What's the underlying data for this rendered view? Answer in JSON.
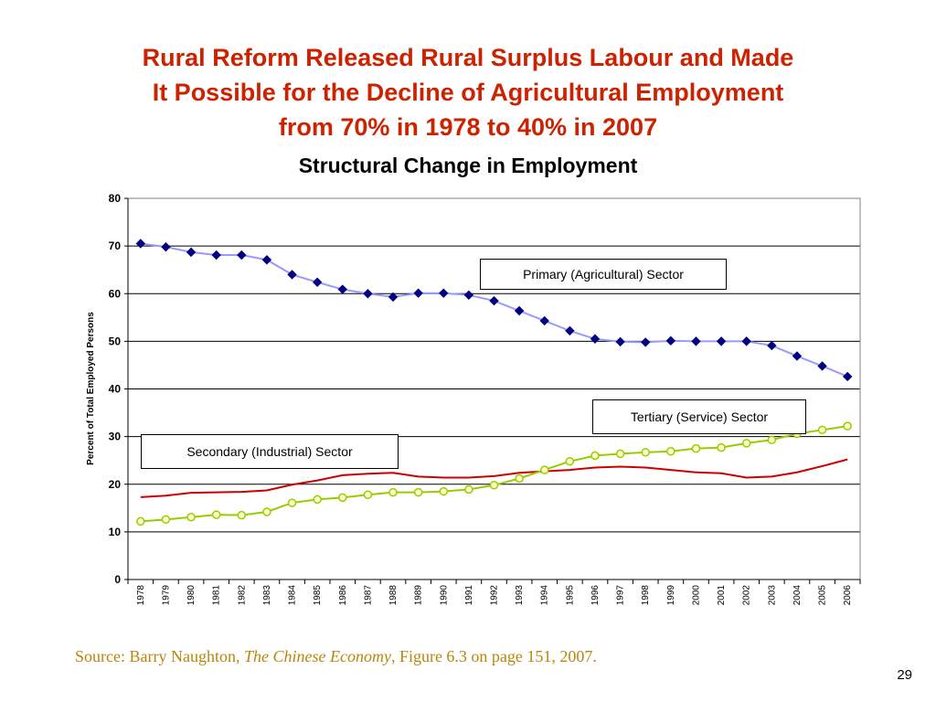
{
  "slide": {
    "title_lines": [
      "Rural Reform Released Rural Surplus Labour and Made",
      "It Possible for the Decline of Agricultural Employment",
      "from 70% in 1978 to 40% in 2007"
    ],
    "source_prefix": "Source: Barry Naughton, ",
    "source_title": "The Chinese Economy",
    "source_suffix": ", Figure 6.3 on page 151, 2007.",
    "page_number": "29"
  },
  "chart_data": {
    "type": "line",
    "title": "Structural Change in Employment",
    "xlabel": "",
    "ylabel": "Percent of Total Employed Persons",
    "ylim": [
      0,
      80
    ],
    "yticks": [
      "0",
      "10",
      "20",
      "30",
      "40",
      "50",
      "60",
      "70",
      "80"
    ],
    "grid": true,
    "categories": [
      "1978",
      "1979",
      "1980",
      "1981",
      "1982",
      "1983",
      "1984",
      "1985",
      "1986",
      "1987",
      "1988",
      "1989",
      "1990",
      "1991",
      "1992",
      "1993",
      "1994",
      "1995",
      "1996",
      "1997",
      "1998",
      "1999",
      "2000",
      "2001",
      "2002",
      "2003",
      "2004",
      "2005",
      "2006"
    ],
    "series": [
      {
        "name": "Primary (Agricultural) Sector",
        "color": "#9999ff",
        "marker": "diamond",
        "marker_color": "#000080",
        "values": [
          70.5,
          69.8,
          68.7,
          68.1,
          68.1,
          67.1,
          64.0,
          62.4,
          60.9,
          60.0,
          59.3,
          60.1,
          60.1,
          59.7,
          58.5,
          56.4,
          54.3,
          52.2,
          50.5,
          49.9,
          49.8,
          50.1,
          50.0,
          50.0,
          50.0,
          49.1,
          46.9,
          44.8,
          42.6
        ]
      },
      {
        "name": "Secondary (Industrial) Sector",
        "color": "#cc0000",
        "marker": "none",
        "values": [
          17.3,
          17.6,
          18.2,
          18.3,
          18.4,
          18.7,
          19.9,
          20.8,
          21.9,
          22.2,
          22.4,
          21.6,
          21.4,
          21.4,
          21.7,
          22.4,
          22.7,
          23.0,
          23.5,
          23.7,
          23.5,
          23.0,
          22.5,
          22.3,
          21.4,
          21.6,
          22.5,
          23.8,
          25.2
        ]
      },
      {
        "name": "Tertiary (Service) Sector",
        "color": "#99cc00",
        "marker": "circle",
        "marker_fill": "#ffffcc",
        "values": [
          12.2,
          12.6,
          13.1,
          13.6,
          13.5,
          14.2,
          16.1,
          16.8,
          17.2,
          17.8,
          18.3,
          18.3,
          18.5,
          18.9,
          19.8,
          21.2,
          23.0,
          24.8,
          26.0,
          26.4,
          26.7,
          26.9,
          27.5,
          27.7,
          28.6,
          29.3,
          30.6,
          31.4,
          32.2
        ]
      }
    ]
  }
}
